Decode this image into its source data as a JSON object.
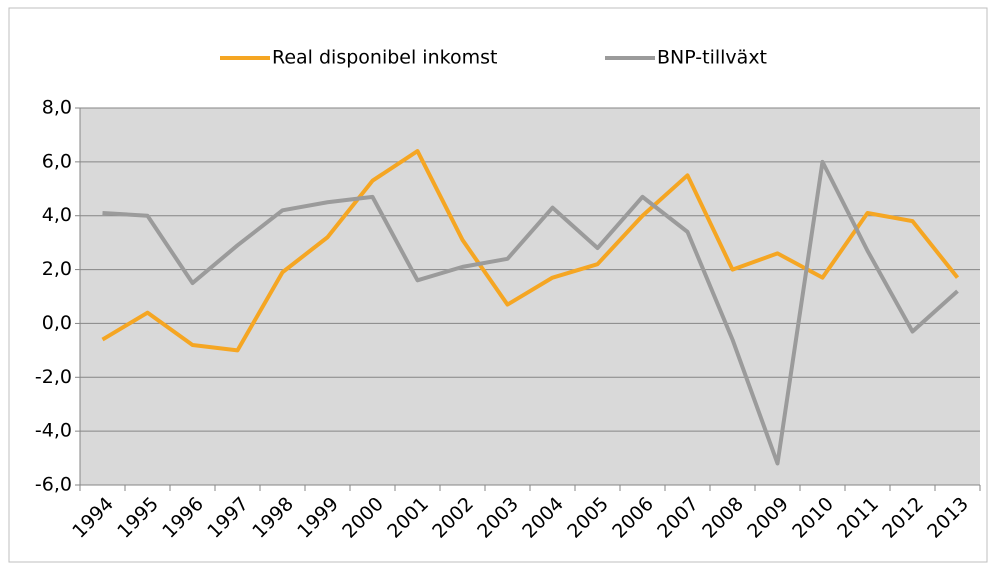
{
  "chart_data": {
    "type": "line",
    "categories": [
      "1994",
      "1995",
      "1996",
      "1997",
      "1998",
      "1999",
      "2000",
      "2001",
      "2002",
      "2003",
      "2004",
      "2005",
      "2006",
      "2007",
      "2008",
      "2009",
      "2010",
      "2011",
      "2012",
      "2013"
    ],
    "series": [
      {
        "name": "Real disponibel inkomst",
        "color": "#f5a623",
        "values": [
          -0.6,
          0.4,
          -0.8,
          -1.0,
          1.9,
          3.2,
          5.3,
          6.4,
          3.1,
          0.7,
          1.7,
          2.2,
          4.0,
          5.5,
          2.0,
          2.6,
          1.7,
          4.1,
          3.8,
          1.7
        ]
      },
      {
        "name": "BNP-tillväxt",
        "color": "#9b9b9b",
        "values": [
          4.1,
          4.0,
          1.5,
          2.9,
          4.2,
          4.5,
          4.7,
          1.6,
          2.1,
          2.4,
          4.3,
          2.8,
          4.7,
          3.4,
          -0.6,
          -5.2,
          6.0,
          2.7,
          -0.3,
          1.2
        ]
      }
    ],
    "ylim": [
      -6,
      8
    ],
    "yticks": [
      {
        "value": -6,
        "label": "-6,0"
      },
      {
        "value": -4,
        "label": "-4,0"
      },
      {
        "value": -2,
        "label": "-2,0"
      },
      {
        "value": 0,
        "label": "0,0"
      },
      {
        "value": 2,
        "label": "2,0"
      },
      {
        "value": 4,
        "label": "4,0"
      },
      {
        "value": 6,
        "label": "6,0"
      },
      {
        "value": 8,
        "label": "8,0"
      }
    ],
    "grid": true,
    "legend": "top"
  }
}
